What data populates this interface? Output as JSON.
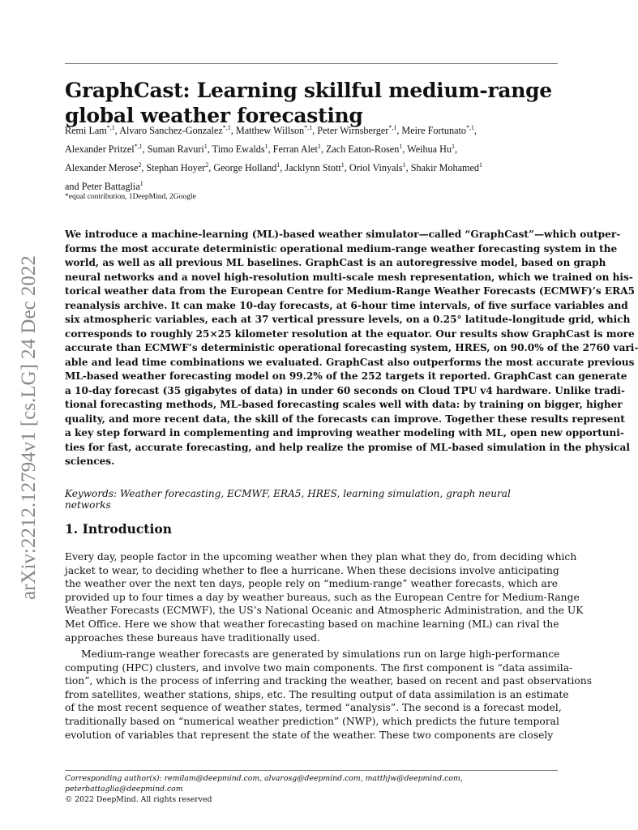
{
  "arxiv_stamp": "arXiv:2212.12794v1  [cs.LG]  24 Dec 2022",
  "title_lines": [
    "GraphCast: Learning skillful medium-range",
    "global weather forecasting"
  ],
  "authors": [
    [
      {
        "n": "Remi Lam",
        "s": "*,1"
      },
      {
        "n": "Alvaro Sanchez-Gonzalez",
        "s": "*,1"
      },
      {
        "n": "Matthew Willson",
        "s": "*,1"
      },
      {
        "n": "Peter Wirnsberger",
        "s": "*,1"
      },
      {
        "n": "Meire Fortunato",
        "s": "*,1"
      }
    ],
    [
      {
        "n": "Alexander Pritzel",
        "s": "*,1"
      },
      {
        "n": "Suman Ravuri",
        "s": "1"
      },
      {
        "n": "Timo Ewalds",
        "s": "1"
      },
      {
        "n": "Ferran Alet",
        "s": "1"
      },
      {
        "n": "Zach Eaton-Rosen",
        "s": "1"
      },
      {
        "n": "Weihua Hu",
        "s": "1"
      }
    ],
    [
      {
        "n": "Alexander Merose",
        "s": "2"
      },
      {
        "n": "Stephan Hoyer",
        "s": "2"
      },
      {
        "n": "George Holland",
        "s": "1"
      },
      {
        "n": "Jacklynn Stott",
        "s": "1"
      },
      {
        "n": "Oriol Vinyals",
        "s": "1"
      },
      {
        "n": "Shakir Mohamed",
        "s": "1"
      }
    ],
    [
      {
        "n": "and Peter Battaglia",
        "s": "1"
      }
    ]
  ],
  "affiliations": "*equal contribution, 1DeepMind, 2Google",
  "abstract": [
    "We introduce a machine-learning (ML)-based weather simulator—called “GraphCast”—which outper-",
    "forms the most accurate deterministic operational medium-range weather forecasting system in the",
    "world, as well as all previous ML baselines.  GraphCast is an autoregressive model, based on graph",
    "neural networks and a novel high-resolution multi-scale mesh representation, which we trained on his-",
    "torical weather data from the European Centre for Medium-Range Weather Forecasts (ECMWF)’s ERA5",
    "reanalysis archive. It can make 10-day forecasts, at 6-hour time intervals, of five surface variables and",
    "six atmospheric variables, each at 37 vertical pressure levels, on a 0.25° latitude-longitude grid, which",
    "corresponds to roughly 25×25 kilometer resolution at the equator. Our results show GraphCast is more",
    "accurate than ECMWF’s deterministic operational forecasting system, HRES, on 90.0% of the 2760 vari-",
    "able and lead time combinations we evaluated. GraphCast also outperforms the most accurate previous",
    "ML-based weather forecasting model on 99.2% of the 252 targets it reported. GraphCast can generate",
    "a 10-day forecast (35 gigabytes of data) in under 60 seconds on Cloud TPU v4 hardware.  Unlike tradi-",
    "tional forecasting methods, ML-based forecasting scales well with data:  by training on bigger, higher",
    "quality, and more recent data, the skill of the forecasts can improve. Together these results represent",
    "a key step forward in complementing and improving weather modeling with ML, open new opportuni-",
    "ties for fast, accurate forecasting, and help realize the promise of ML-based simulation in the physical",
    "sciences."
  ],
  "keywords": "Keywords: Weather forecasting, ECMWF, ERA5, HRES, learning simulation, graph neural networks",
  "section_heading": "1.  Introduction",
  "paragraph1": [
    "Every day, people factor in the upcoming weather when they plan what they do, from deciding which",
    "jacket to wear, to deciding whether to flee a hurricane. When these decisions involve anticipating",
    "the weather over the next ten days, people rely on “medium-range” weather forecasts, which are",
    "provided up to four times a day by weather bureaus, such as the European Centre for Medium-Range",
    "Weather Forecasts (ECMWF), the US’s National Oceanic and Atmospheric Administration, and the UK",
    "Met Office. Here we show that weather forecasting based on machine learning (ML) can rival the",
    "approaches these bureaus have traditionally used."
  ],
  "paragraph2": [
    "Medium-range weather forecasts are generated by simulations run on large high-performance",
    "computing (HPC) clusters, and involve two main components. The first component is “data assimila-",
    "tion”, which is the process of inferring and tracking the weather, based on recent and past observations",
    "from satellites, weather stations, ships, etc. The resulting output of data assimilation is an estimate",
    "of the most recent sequence of weather states, termed “analysis”.  The second is a forecast model,",
    "traditionally based on “numerical weather prediction” (NWP), which predicts the future temporal",
    "evolution of variables that represent the state of the weather.  These two components are closely"
  ],
  "footer": {
    "corresponding": "Corresponding author(s): remilam@deepmind.com, alvarosg@deepmind.com, matthjw@deepmind.com, peterbattaglia@deepmind.com",
    "copyright": "© 2022 DeepMind. All rights reserved"
  }
}
